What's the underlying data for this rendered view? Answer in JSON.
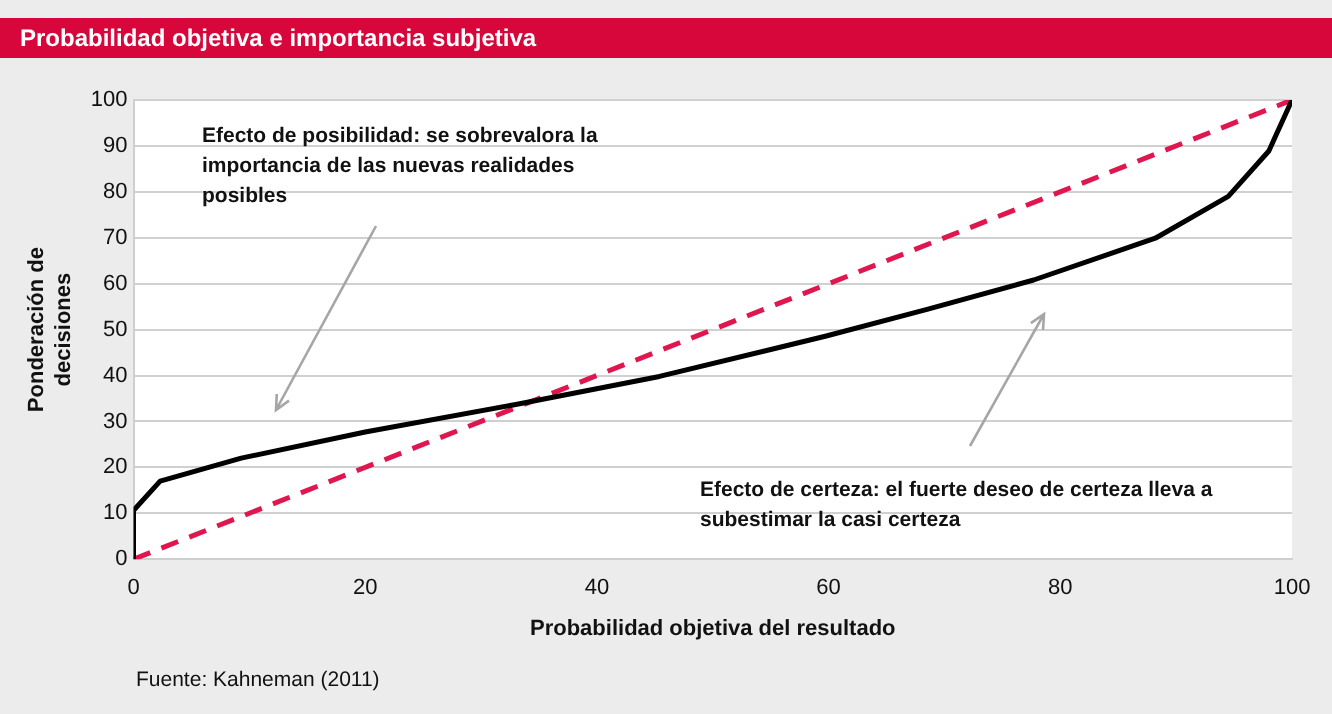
{
  "chart_data": {
    "type": "line",
    "title": "Probabilidad objetiva e importancia subjetiva",
    "xlabel": "Probabilidad objetiva del resultado",
    "ylabel": "Ponderación de decisiones",
    "xlim": [
      0,
      100
    ],
    "xticks": [
      0,
      20,
      40,
      60,
      80,
      100
    ],
    "ylim": [
      0,
      100
    ],
    "yticks": [
      0,
      10,
      20,
      30,
      40,
      50,
      60,
      70,
      80,
      90,
      100
    ],
    "grid": "y",
    "legend": false,
    "marker": "none",
    "series": [
      {
        "color": "#000000",
        "line_style": "solid",
        "x": [
          0,
          0,
          2.3,
          9.3,
          20,
          33,
          45.4,
          59.8,
          68.5,
          77.7,
          88.2,
          94.5,
          98,
          100
        ],
        "values": [
          0,
          10.6,
          17,
          22,
          27.7,
          33.7,
          39.8,
          48.6,
          54.4,
          60.8,
          69.9,
          79,
          88.9,
          100
        ]
      },
      {
        "color": "#e0174f",
        "line_style": "dashed",
        "x": [
          0,
          100
        ],
        "values": [
          0,
          100
        ]
      }
    ],
    "annotations": [
      "Efecto de posibilidad: se sobrevalora la importancia de las nuevas realidades posibles",
      "Efecto de certeza: el fuerte deseo de certeza lleva a subestimar la casi certeza",
      "Fuente: Kahneman (2011)"
    ]
  }
}
